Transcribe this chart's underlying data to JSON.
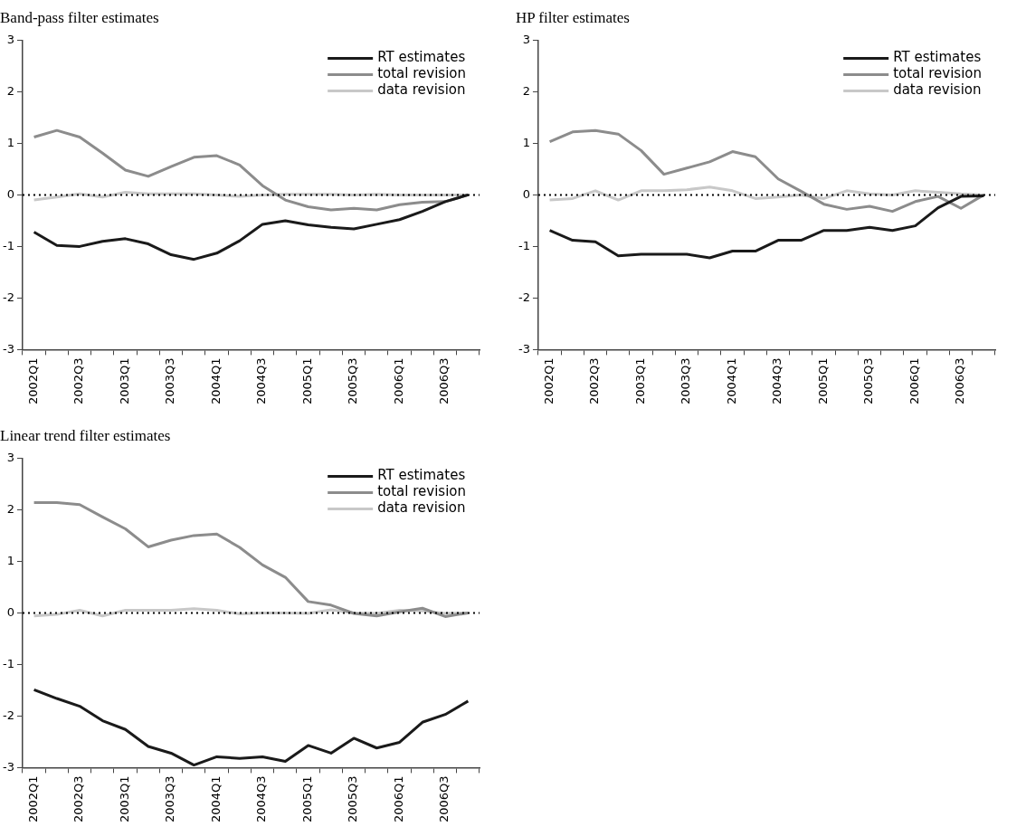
{
  "chart_data": [
    {
      "type": "line",
      "title": "Band-pass filter estimates",
      "categories": [
        "2002Q1",
        null,
        "2002Q3",
        null,
        "2003Q1",
        null,
        "2003Q3",
        null,
        "2004Q1",
        null,
        "2004Q3",
        null,
        "2005Q1",
        null,
        "2005Q3",
        null,
        "2006Q1",
        null,
        "2006Q3",
        null
      ],
      "series": [
        {
          "name": "RT estimates",
          "color": "#1a1a1a",
          "values": [
            -0.72,
            -0.98,
            -1.0,
            -0.9,
            -0.85,
            -0.95,
            -1.16,
            -1.25,
            -1.13,
            -0.89,
            -0.57,
            -0.5,
            -0.58,
            -0.63,
            -0.66,
            -0.57,
            -0.48,
            -0.32,
            -0.13,
            0
          ]
        },
        {
          "name": "total revision",
          "color": "#8c8c8c",
          "values": [
            1.12,
            1.25,
            1.12,
            0.81,
            0.48,
            0.36,
            0.55,
            0.73,
            0.76,
            0.58,
            0.18,
            -0.1,
            -0.23,
            -0.29,
            -0.26,
            -0.29,
            -0.19,
            -0.14,
            -0.13,
            0
          ]
        },
        {
          "name": "data revision",
          "color": "#c8c8c8",
          "values": [
            -0.1,
            -0.04,
            0.02,
            -0.04,
            0.05,
            0.02,
            0.02,
            0.02,
            0,
            -0.03,
            0,
            0.01,
            0.01,
            0.01,
            0,
            0.01,
            0,
            0,
            0,
            0
          ]
        }
      ],
      "ylim": [
        -3,
        3
      ],
      "yticks": [
        -3,
        -2,
        -1,
        0,
        1,
        2,
        3
      ],
      "grid": false,
      "legend": "top right",
      "marker": "none",
      "ref_lines": [
        {
          "axis": "y",
          "value": 0,
          "color": "#000000",
          "line_style": "dotted"
        }
      ]
    },
    {
      "type": "line",
      "title": "HP filter estimates",
      "categories": [
        "2002Q1",
        null,
        "2002Q3",
        null,
        "2003Q1",
        null,
        "2003Q3",
        null,
        "2004Q1",
        null,
        "2004Q3",
        null,
        "2005Q1",
        null,
        "2005Q3",
        null,
        "2006Q1",
        null,
        "2006Q3",
        null
      ],
      "series": [
        {
          "name": "RT estimates",
          "color": "#1a1a1a",
          "values": [
            -0.69,
            -0.88,
            -0.91,
            -1.18,
            -1.15,
            -1.15,
            -1.15,
            -1.22,
            -1.09,
            -1.09,
            -0.88,
            -0.88,
            -0.69,
            -0.69,
            -0.63,
            -0.69,
            -0.6,
            -0.25,
            -0.03,
            -0.02
          ]
        },
        {
          "name": "total revision",
          "color": "#8c8c8c",
          "values": [
            1.03,
            1.22,
            1.25,
            1.18,
            0.86,
            0.4,
            0.52,
            0.64,
            0.84,
            0.74,
            0.31,
            0.07,
            -0.18,
            -0.28,
            -0.22,
            -0.32,
            -0.13,
            -0.03,
            -0.26,
            0
          ]
        },
        {
          "name": "data revision",
          "color": "#c8c8c8",
          "values": [
            -0.1,
            -0.07,
            0.08,
            -0.1,
            0.08,
            0.08,
            0.1,
            0.15,
            0.08,
            -0.07,
            -0.04,
            0,
            -0.07,
            0.08,
            0.02,
            0,
            0.08,
            0.05,
            0.02,
            0
          ]
        }
      ],
      "ylim": [
        -3,
        3
      ],
      "yticks": [
        -3,
        -2,
        -1,
        0,
        1,
        2,
        3
      ],
      "grid": false,
      "legend": "top right",
      "marker": "none",
      "ref_lines": [
        {
          "axis": "y",
          "value": 0,
          "color": "#000000",
          "line_style": "dotted"
        }
      ]
    },
    {
      "type": "line",
      "title": "Linear trend filter estimates",
      "categories": [
        "2002Q1",
        null,
        "2002Q3",
        null,
        "2003Q1",
        null,
        "2003Q3",
        null,
        "2004Q1",
        null,
        "2004Q3",
        null,
        "2005Q1",
        null,
        "2005Q3",
        null,
        "2006Q1",
        null,
        "2006Q3",
        null
      ],
      "series": [
        {
          "name": "RT estimates",
          "color": "#1a1a1a",
          "values": [
            -1.49,
            -1.66,
            -1.81,
            -2.09,
            -2.26,
            -2.59,
            -2.72,
            -2.95,
            -2.79,
            -2.82,
            -2.79,
            -2.88,
            -2.57,
            -2.72,
            -2.43,
            -2.62,
            -2.51,
            -2.12,
            -1.97,
            -1.71
          ]
        },
        {
          "name": "total revision",
          "color": "#8c8c8c",
          "values": [
            2.14,
            2.14,
            2.1,
            1.86,
            1.63,
            1.28,
            1.41,
            1.5,
            1.53,
            1.27,
            0.93,
            0.69,
            0.22,
            0.15,
            -0.01,
            -0.06,
            0.02,
            0.09,
            -0.07,
            0
          ]
        },
        {
          "name": "data revision",
          "color": "#c8c8c8",
          "values": [
            -0.06,
            -0.03,
            0.05,
            -0.06,
            0.05,
            0.05,
            0.05,
            0.08,
            0.05,
            -0.02,
            0,
            0,
            -0.01,
            0.06,
            0,
            -0.01,
            0.05,
            0.04,
            -0.01,
            0
          ]
        }
      ],
      "ylim": [
        -3,
        3
      ],
      "yticks": [
        -3,
        -2,
        -1,
        0,
        1,
        2,
        3
      ],
      "grid": false,
      "legend": "top right",
      "marker": "none",
      "ref_lines": [
        {
          "axis": "y",
          "value": 0,
          "color": "#000000",
          "line_style": "dotted"
        }
      ]
    }
  ]
}
